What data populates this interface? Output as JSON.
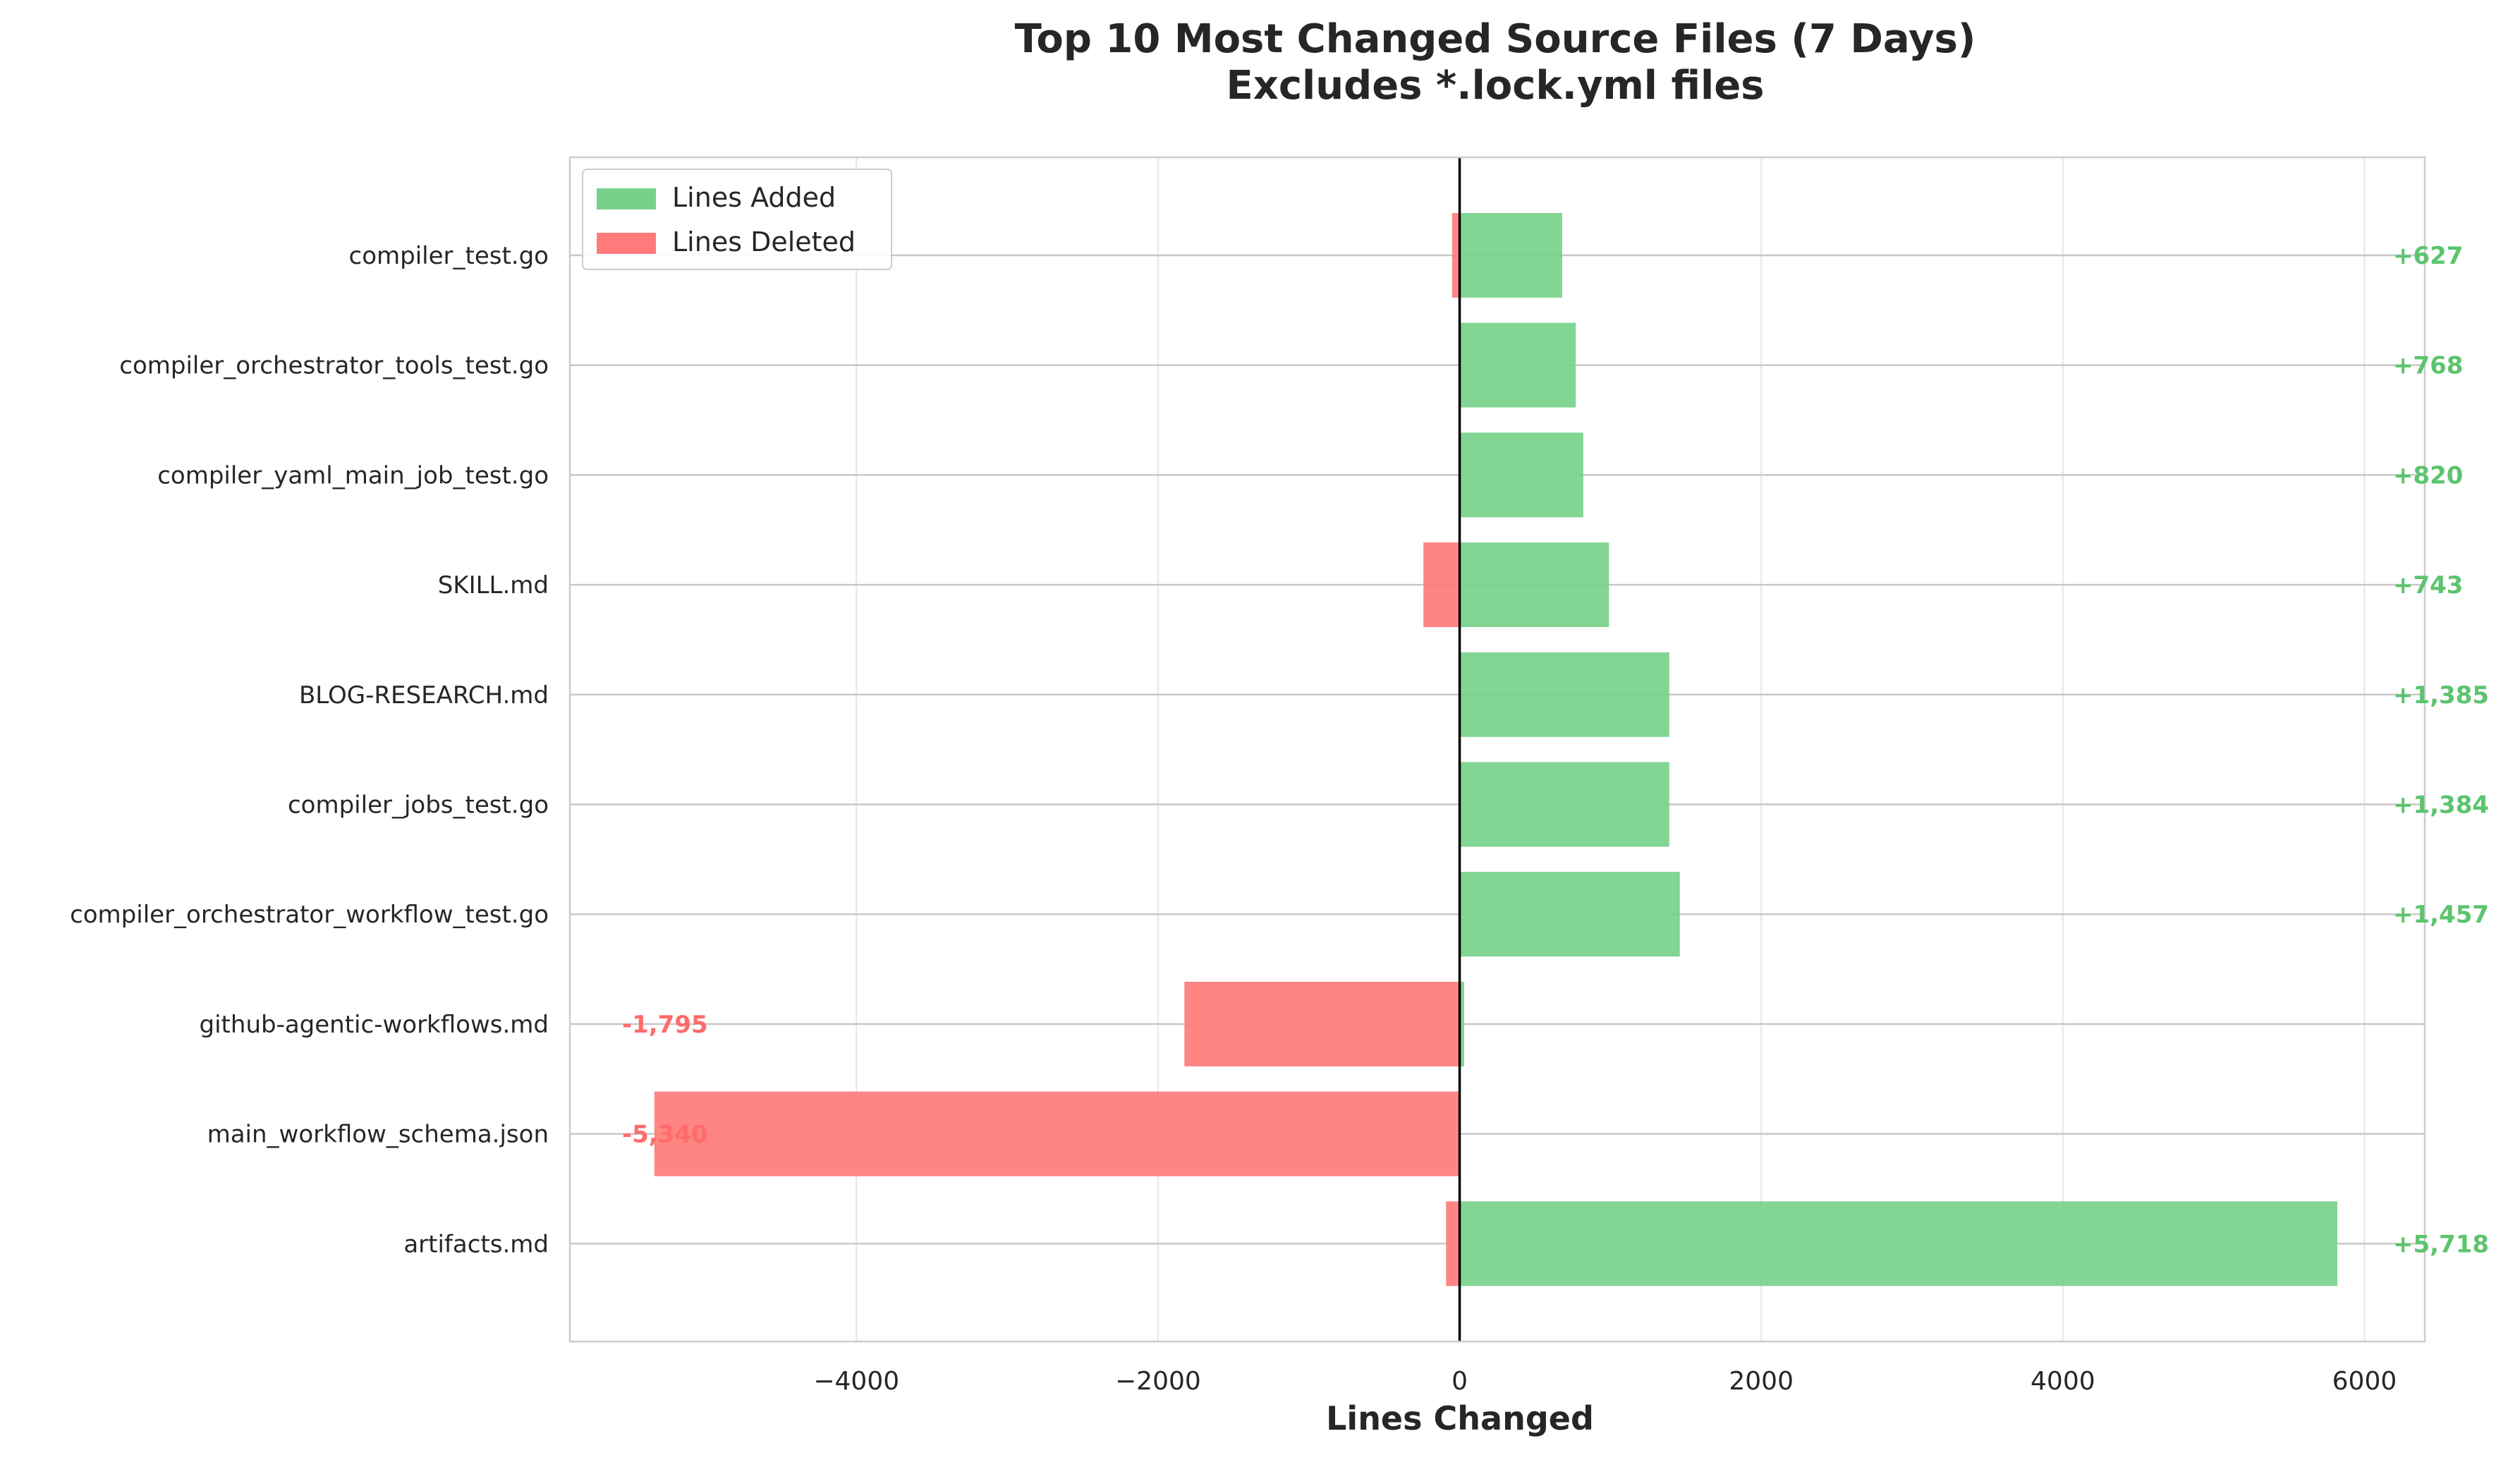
{
  "chart_data": {
    "type": "bar",
    "orientation": "horizontal",
    "title": "Top 10 Most Changed Source Files (7 Days)",
    "subtitle": "Excludes *.lock.yml files",
    "xlabel": "Lines Changed",
    "ylabel": "",
    "xlim": [
      -5900,
      6400
    ],
    "xticks": [
      -4000,
      -2000,
      0,
      2000,
      4000,
      6000
    ],
    "xtick_labels": [
      "−4000",
      "−2000",
      "0",
      "2000",
      "4000",
      "6000"
    ],
    "grid": true,
    "legend_position": "top-left",
    "categories": [
      "compiler_test.go",
      "compiler_orchestrator_tools_test.go",
      "compiler_yaml_main_job_test.go",
      "SKILL.md",
      "BLOG-RESEARCH.md",
      "compiler_jobs_test.go",
      "compiler_orchestrator_workflow_test.go",
      "github-agentic-workflows.md",
      "main_workflow_schema.json",
      "artifacts.md"
    ],
    "series": [
      {
        "name": "Lines Added",
        "color": "#77d18a",
        "values": [
          680,
          770,
          820,
          990,
          1390,
          1390,
          1460,
          30,
          0,
          5820
        ]
      },
      {
        "name": "Lines Deleted",
        "color": "#ff7b7b",
        "values": [
          -50,
          0,
          0,
          -240,
          0,
          0,
          0,
          -1825,
          -5340,
          -90
        ]
      }
    ],
    "net_labels": [
      "+627",
      "+768",
      "+820",
      "+743",
      "+1,385",
      "+1,384",
      "+1,457",
      "-1,795",
      "-5,340",
      "+5,718"
    ],
    "colors": {
      "positive_label": "#5cc46e",
      "negative_label": "#ff6b6b",
      "zero_line": "#000000",
      "grid": "#e6e6e6",
      "row_line": "#c8c8c8",
      "frame": "#cccccc"
    }
  }
}
